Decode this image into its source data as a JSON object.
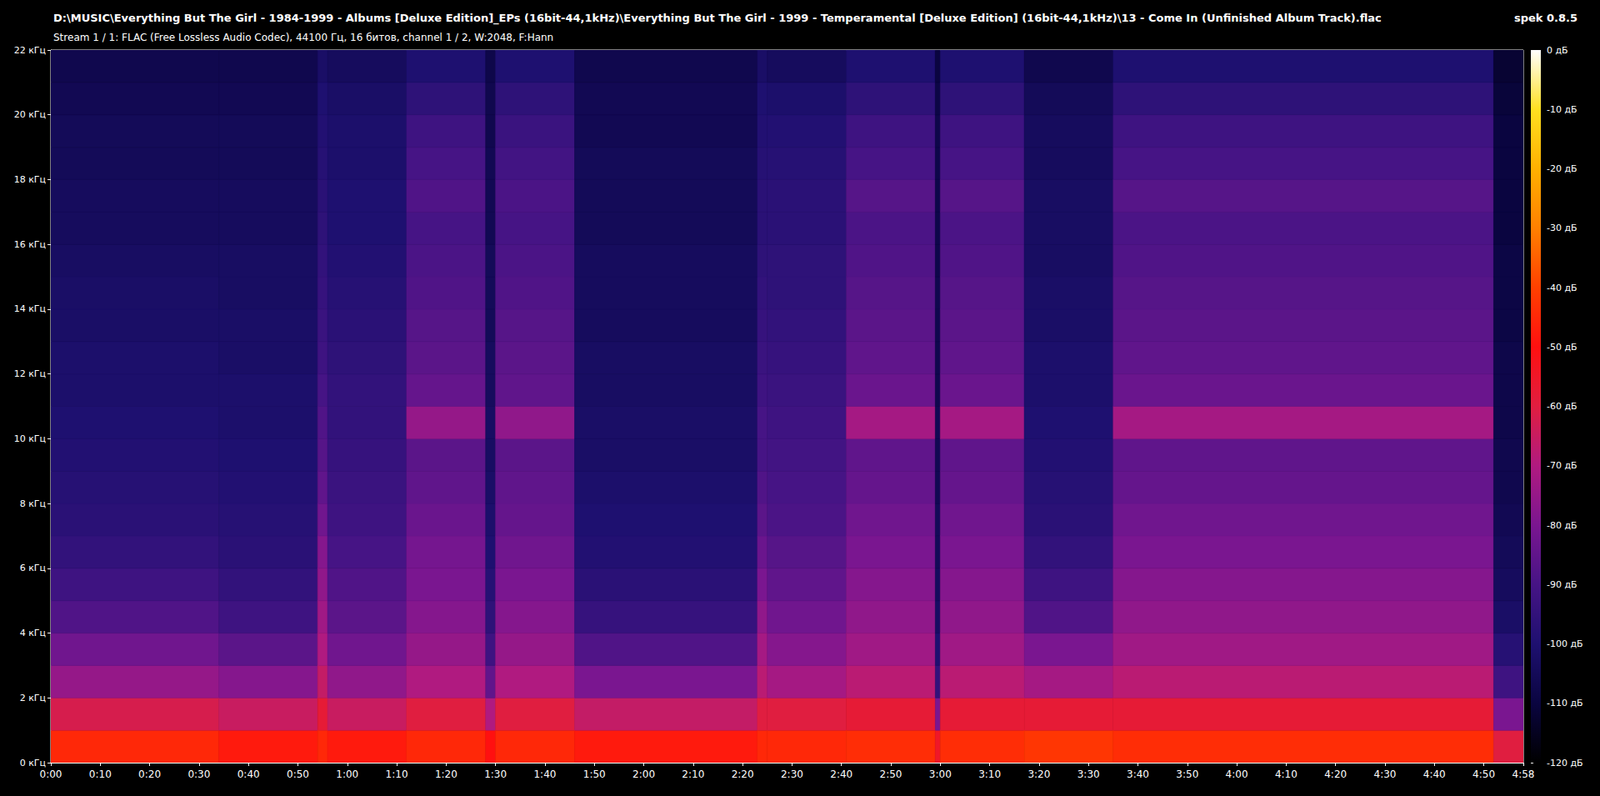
{
  "chart_data": {
    "type": "heatmap",
    "title": "D:\\MUSIC\\Everything But The Girl - 1984-1999 - Albums [Deluxe Edition]_EPs (16bit-44,1kHz)\\Everything But The Girl - 1999 - Temperamental [Deluxe Edition] (16bit-44,1kHz)\\13 - Come In (Unfinished Album Track).flac",
    "subtitle": "Stream 1 / 1: FLAC (Free Lossless Audio Codec), 44100 Гц, 16 битов, channel 1 / 2, W:2048, F:Hann",
    "annotations": [
      "spek 0.8.5"
    ],
    "xlim": [
      0,
      298
    ],
    "xticks": [
      {
        "value": 0,
        "label": "0:00"
      },
      {
        "value": 10,
        "label": "0:10"
      },
      {
        "value": 20,
        "label": "0:20"
      },
      {
        "value": 30,
        "label": "0:30"
      },
      {
        "value": 40,
        "label": "0:40"
      },
      {
        "value": 50,
        "label": "0:50"
      },
      {
        "value": 60,
        "label": "1:00"
      },
      {
        "value": 70,
        "label": "1:10"
      },
      {
        "value": 80,
        "label": "1:20"
      },
      {
        "value": 90,
        "label": "1:30"
      },
      {
        "value": 100,
        "label": "1:40"
      },
      {
        "value": 110,
        "label": "1:50"
      },
      {
        "value": 120,
        "label": "2:00"
      },
      {
        "value": 130,
        "label": "2:10"
      },
      {
        "value": 140,
        "label": "2:20"
      },
      {
        "value": 150,
        "label": "2:30"
      },
      {
        "value": 160,
        "label": "2:40"
      },
      {
        "value": 170,
        "label": "2:50"
      },
      {
        "value": 180,
        "label": "3:00"
      },
      {
        "value": 190,
        "label": "3:10"
      },
      {
        "value": 200,
        "label": "3:20"
      },
      {
        "value": 210,
        "label": "3:30"
      },
      {
        "value": 220,
        "label": "3:40"
      },
      {
        "value": 230,
        "label": "3:50"
      },
      {
        "value": 240,
        "label": "4:00"
      },
      {
        "value": 250,
        "label": "4:10"
      },
      {
        "value": 260,
        "label": "4:20"
      },
      {
        "value": 270,
        "label": "4:30"
      },
      {
        "value": 280,
        "label": "4:40"
      },
      {
        "value": 290,
        "label": "4:50"
      },
      {
        "value": 298,
        "label": "4:58"
      }
    ],
    "ylim": [
      0,
      22
    ],
    "yticks": [
      {
        "value": 0,
        "label": "0 кГц"
      },
      {
        "value": 2,
        "label": "2 кГц"
      },
      {
        "value": 4,
        "label": "4 кГц"
      },
      {
        "value": 6,
        "label": "6 кГц"
      },
      {
        "value": 8,
        "label": "8 кГц"
      },
      {
        "value": 10,
        "label": "10 кГц"
      },
      {
        "value": 12,
        "label": "12 кГц"
      },
      {
        "value": 14,
        "label": "14 кГц"
      },
      {
        "value": 16,
        "label": "16 кГц"
      },
      {
        "value": 18,
        "label": "18 кГц"
      },
      {
        "value": 20,
        "label": "20 кГц"
      },
      {
        "value": 22,
        "label": "22 кГц"
      }
    ],
    "x_bins": [
      0,
      34,
      54,
      56,
      72,
      88,
      90,
      106,
      143,
      145,
      161,
      179,
      180,
      197,
      215,
      292,
      298
    ],
    "y_bins": [
      0,
      1,
      2,
      3,
      4,
      5,
      6,
      7,
      8,
      9,
      10,
      11,
      12,
      13,
      14,
      15,
      16,
      17,
      18,
      19,
      20,
      21,
      22
    ],
    "values": [
      [
        -45,
        -62,
        -75,
        -82,
        -88,
        -92,
        -95,
        -97,
        -98,
        -99,
        -100,
        -101,
        -101,
        -102,
        -102,
        -103,
        -104,
        -104,
        -105,
        -105,
        -106,
        -107
      ],
      [
        -48,
        -65,
        -78,
        -86,
        -92,
        -95,
        -97,
        -98,
        -99,
        -100,
        -101,
        -101,
        -102,
        -102,
        -103,
        -103,
        -104,
        -104,
        -105,
        -105,
        -106,
        -107
      ],
      [
        -45,
        -58,
        -66,
        -70,
        -73,
        -76,
        -78,
        -82,
        -85,
        -87,
        -88,
        -90,
        -92,
        -93,
        -94,
        -95,
        -96,
        -97,
        -98,
        -99,
        -100,
        -102
      ],
      [
        -48,
        -65,
        -76,
        -82,
        -86,
        -88,
        -90,
        -92,
        -93,
        -94,
        -95,
        -95,
        -96,
        -97,
        -98,
        -99,
        -100,
        -100,
        -101,
        -101,
        -102,
        -104
      ],
      [
        -45,
        -60,
        -70,
        -75,
        -78,
        -80,
        -81,
        -83,
        -85,
        -86,
        -75,
        -84,
        -86,
        -87,
        -88,
        -89,
        -90,
        -88,
        -90,
        -92,
        -96,
        -100
      ],
      [
        -50,
        -70,
        -85,
        -92,
        -96,
        -98,
        -100,
        -101,
        -102,
        -103,
        -103,
        -104,
        -104,
        -105,
        -105,
        -105,
        -106,
        -106,
        -106,
        -107,
        -107,
        -108
      ],
      [
        -45,
        -60,
        -70,
        -75,
        -78,
        -80,
        -82,
        -84,
        -85,
        -86,
        -76,
        -85,
        -86,
        -87,
        -88,
        -89,
        -90,
        -89,
        -91,
        -93,
        -96,
        -100
      ],
      [
        -48,
        -66,
        -80,
        -88,
        -94,
        -97,
        -99,
        -100,
        -101,
        -102,
        -102,
        -103,
        -103,
        -104,
        -104,
        -104,
        -105,
        -105,
        -105,
        -106,
        -106,
        -107
      ],
      [
        -45,
        -60,
        -68,
        -72,
        -76,
        -80,
        -83,
        -86,
        -88,
        -90,
        -90,
        -92,
        -93,
        -94,
        -95,
        -96,
        -97,
        -97,
        -98,
        -99,
        -100,
        -102
      ],
      [
        -45,
        -60,
        -72,
        -78,
        -82,
        -85,
        -87,
        -89,
        -90,
        -91,
        -92,
        -93,
        -94,
        -95,
        -96,
        -96,
        -97,
        -97,
        -98,
        -99,
        -101,
        -104
      ],
      [
        -44,
        -58,
        -68,
        -73,
        -76,
        -78,
        -80,
        -82,
        -84,
        -85,
        -72,
        -83,
        -85,
        -86,
        -87,
        -88,
        -89,
        -87,
        -90,
        -92,
        -96,
        -100
      ],
      [
        -55,
        -80,
        -95,
        -100,
        -103,
        -104,
        -105,
        -105,
        -106,
        -106,
        -106,
        -107,
        -107,
        -107,
        -107,
        -108,
        -108,
        -108,
        -108,
        -108,
        -109,
        -110
      ],
      [
        -44,
        -58,
        -68,
        -73,
        -76,
        -78,
        -80,
        -82,
        -84,
        -85,
        -72,
        -83,
        -85,
        -86,
        -87,
        -88,
        -89,
        -87,
        -90,
        -92,
        -96,
        -100
      ],
      [
        -42,
        -58,
        -72,
        -80,
        -88,
        -92,
        -95,
        -97,
        -98,
        -99,
        -100,
        -101,
        -101,
        -102,
        -102,
        -103,
        -103,
        -103,
        -104,
        -104,
        -105,
        -107
      ],
      [
        -44,
        -58,
        -68,
        -73,
        -76,
        -78,
        -80,
        -82,
        -84,
        -85,
        -72,
        -83,
        -85,
        -86,
        -87,
        -88,
        -89,
        -87,
        -90,
        -92,
        -96,
        -100
      ],
      [
        -60,
        -80,
        -92,
        -98,
        -102,
        -104,
        -105,
        -106,
        -107,
        -107,
        -108,
        -108,
        -108,
        -109,
        -109,
        -109,
        -110,
        -110,
        -110,
        -110,
        -111,
        -112
      ]
    ],
    "colorbar": {
      "range": [
        -120,
        0
      ],
      "ticks": [
        {
          "value": 0,
          "label": "0 дБ"
        },
        {
          "value": -10,
          "label": "-10 дБ"
        },
        {
          "value": -20,
          "label": "-20 дБ"
        },
        {
          "value": -30,
          "label": "-30 дБ"
        },
        {
          "value": -40,
          "label": "-40 дБ"
        },
        {
          "value": -50,
          "label": "-50 дБ"
        },
        {
          "value": -60,
          "label": "-60 дБ"
        },
        {
          "value": -70,
          "label": "-70 дБ"
        },
        {
          "value": -80,
          "label": "-80 дБ"
        },
        {
          "value": -90,
          "label": "-90 дБ"
        },
        {
          "value": -100,
          "label": "-100 дБ"
        },
        {
          "value": -110,
          "label": "-110 дБ"
        },
        {
          "value": -120,
          "label": "-120 дБ"
        }
      ]
    }
  }
}
